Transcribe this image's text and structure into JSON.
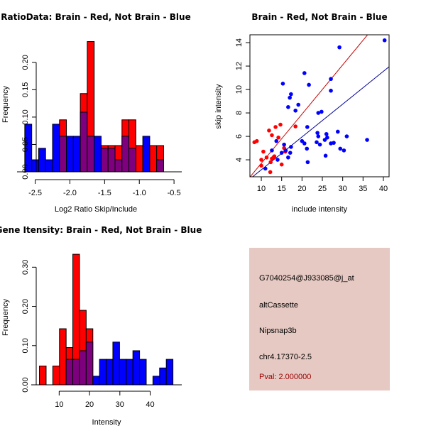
{
  "chart_data": [
    {
      "type": "bar",
      "id": "ratio-hist",
      "title": "RatioData: Brain - Red, Not Brain - Blue",
      "xlabel": "Log2 Ratio Skip/Include",
      "ylabel": "Frequency",
      "xlim": [
        -2.7,
        -0.45
      ],
      "ylim": [
        0,
        0.24
      ],
      "xticks": [
        -2.5,
        -2.0,
        -1.5,
        -1.0,
        -0.5
      ],
      "xtick_labels": [
        "-2.5",
        "-2.0",
        "-1.5",
        "-1.0",
        "-0.5"
      ],
      "yticks": [
        0.0,
        0.05,
        0.1,
        0.15,
        0.2
      ],
      "ytick_labels": [
        "0.00",
        "0.05",
        "0.10",
        "0.15",
        "0.20"
      ],
      "bin_start": -2.65,
      "bin_width": 0.1,
      "series": [
        {
          "name": "Brain",
          "color": "#ff0000",
          "values": [
            0,
            0,
            0,
            0,
            0,
            0.095,
            0,
            0,
            0.143,
            0.238,
            0,
            0.048,
            0.048,
            0.048,
            0.095,
            0.095,
            0.048,
            0,
            0.048,
            0.048
          ]
        },
        {
          "name": "Not Brain",
          "color": "#0000ff",
          "values": [
            0.087,
            0.022,
            0.043,
            0.022,
            0.087,
            0.065,
            0.065,
            0.065,
            0.109,
            0.065,
            0.065,
            0.043,
            0.043,
            0.022,
            0.065,
            0.043,
            0,
            0.065,
            0,
            0.022
          ]
        }
      ],
      "overlap_color": "#7f007f"
    },
    {
      "type": "scatter",
      "id": "intensity-scatter",
      "title": "Brain - Red, Not Brain - Blue",
      "xlabel": "include intensity",
      "ylabel": "skip intensity",
      "xlim": [
        7.2,
        41.4
      ],
      "ylim": [
        2.55,
        14.67
      ],
      "xticks": [
        10,
        15,
        20,
        25,
        30,
        35,
        40
      ],
      "yticks": [
        4,
        6,
        8,
        10,
        12,
        14
      ],
      "lines": [
        {
          "name": "brain-fit",
          "color": "#cc0000",
          "slope": 0.42,
          "intercept": -0.5
        },
        {
          "name": "not-brain-fit",
          "color": "#000099",
          "slope": 0.28,
          "intercept": 0.35
        }
      ],
      "series": [
        {
          "name": "Brain",
          "color": "#ff0000",
          "points": [
            [
              8.3,
              5.5
            ],
            [
              8.9,
              5.6
            ],
            [
              10.5,
              4.7
            ],
            [
              10.0,
              4.0
            ],
            [
              10.0,
              3.5
            ],
            [
              11.3,
              4.2
            ],
            [
              11.9,
              6.5
            ],
            [
              12.6,
              6.1
            ],
            [
              12.3,
              3.8
            ],
            [
              12.6,
              4.1
            ],
            [
              12.2,
              2.95
            ],
            [
              13.0,
              4.2
            ],
            [
              13.2,
              4.3
            ],
            [
              13.5,
              6.8
            ],
            [
              14.2,
              5.9
            ],
            [
              14.7,
              7.0
            ],
            [
              15.0,
              3.6
            ],
            [
              15.6,
              5.0
            ],
            [
              15.9,
              4.7
            ],
            [
              18.4,
              6.85
            ]
          ]
        },
        {
          "name": "Not Brain",
          "color": "#0000ff",
          "points": [
            [
              40.3,
              14.2
            ],
            [
              29.2,
              13.6
            ],
            [
              20.6,
              11.4
            ],
            [
              15.3,
              10.5
            ],
            [
              21.7,
              10.4
            ],
            [
              27.1,
              10.9
            ],
            [
              27.1,
              9.9
            ],
            [
              17.3,
              9.6
            ],
            [
              17.0,
              9.3
            ],
            [
              19.1,
              8.7
            ],
            [
              16.6,
              8.5
            ],
            [
              18.4,
              8.2
            ],
            [
              24.0,
              8.0
            ],
            [
              24.8,
              8.1
            ],
            [
              21.3,
              6.8
            ],
            [
              13.7,
              5.6
            ],
            [
              12.6,
              4.8
            ],
            [
              11.0,
              3.25
            ],
            [
              14.0,
              4.0
            ],
            [
              15.0,
              4.6
            ],
            [
              15.6,
              5.3
            ],
            [
              16.0,
              4.8
            ],
            [
              16.6,
              4.2
            ],
            [
              17.1,
              4.6
            ],
            [
              17.3,
              5.1
            ],
            [
              20.0,
              5.6
            ],
            [
              20.6,
              5.4
            ],
            [
              21.2,
              4.95
            ],
            [
              21.4,
              3.8
            ],
            [
              23.6,
              5.5
            ],
            [
              23.8,
              6.3
            ],
            [
              24.0,
              6.0
            ],
            [
              24.4,
              5.3
            ],
            [
              25.6,
              5.7
            ],
            [
              25.8,
              4.35
            ],
            [
              26.0,
              6.2
            ],
            [
              26.2,
              5.9
            ],
            [
              27.1,
              5.4
            ],
            [
              27.8,
              5.45
            ],
            [
              28.8,
              6.4
            ],
            [
              29.4,
              4.95
            ],
            [
              30.3,
              4.8
            ],
            [
              31.0,
              6.0
            ],
            [
              36.0,
              5.7
            ]
          ]
        }
      ]
    },
    {
      "type": "bar",
      "id": "gene-intensity-hist",
      "title": "Gene Itensity: Brain - Red, Not Brain - Blue",
      "xlabel": "Intensity",
      "ylabel": "Frequency",
      "xlim": [
        2.2,
        49
      ],
      "ylim": [
        0,
        0.335
      ],
      "xticks": [
        10,
        20,
        30,
        40
      ],
      "xtick_labels": [
        "10",
        "20",
        "30",
        "40"
      ],
      "yticks": [
        0.0,
        0.1,
        0.2,
        0.3
      ],
      "ytick_labels": [
        "0.00",
        "0.10",
        "0.20",
        "0.30"
      ],
      "bin_start": 3.5,
      "bin_width": 2.2,
      "series": [
        {
          "name": "Brain",
          "color": "#ff0000",
          "values": [
            0.048,
            0,
            0.048,
            0.143,
            0.095,
            0.333,
            0.19,
            0.143,
            0,
            0,
            0,
            0,
            0,
            0,
            0,
            0,
            0,
            0,
            0,
            0
          ]
        },
        {
          "name": "Not Brain",
          "color": "#0000ff",
          "values": [
            0,
            0,
            0,
            0,
            0.065,
            0.065,
            0.087,
            0.109,
            0.022,
            0.065,
            0.065,
            0.109,
            0.065,
            0.065,
            0.087,
            0.065,
            0,
            0.022,
            0.043,
            0.065
          ]
        }
      ],
      "overlap_color": "#7f007f"
    }
  ],
  "info_panel": {
    "probe_id": "G7040254@J933085@j_at",
    "event_type": "altCassette",
    "gene": "Nipsnap3b",
    "location": "chr4.17370-2.5",
    "pval": "Pval: 2.000000",
    "pval_color": "#990000",
    "background": "#e6c9c2"
  }
}
